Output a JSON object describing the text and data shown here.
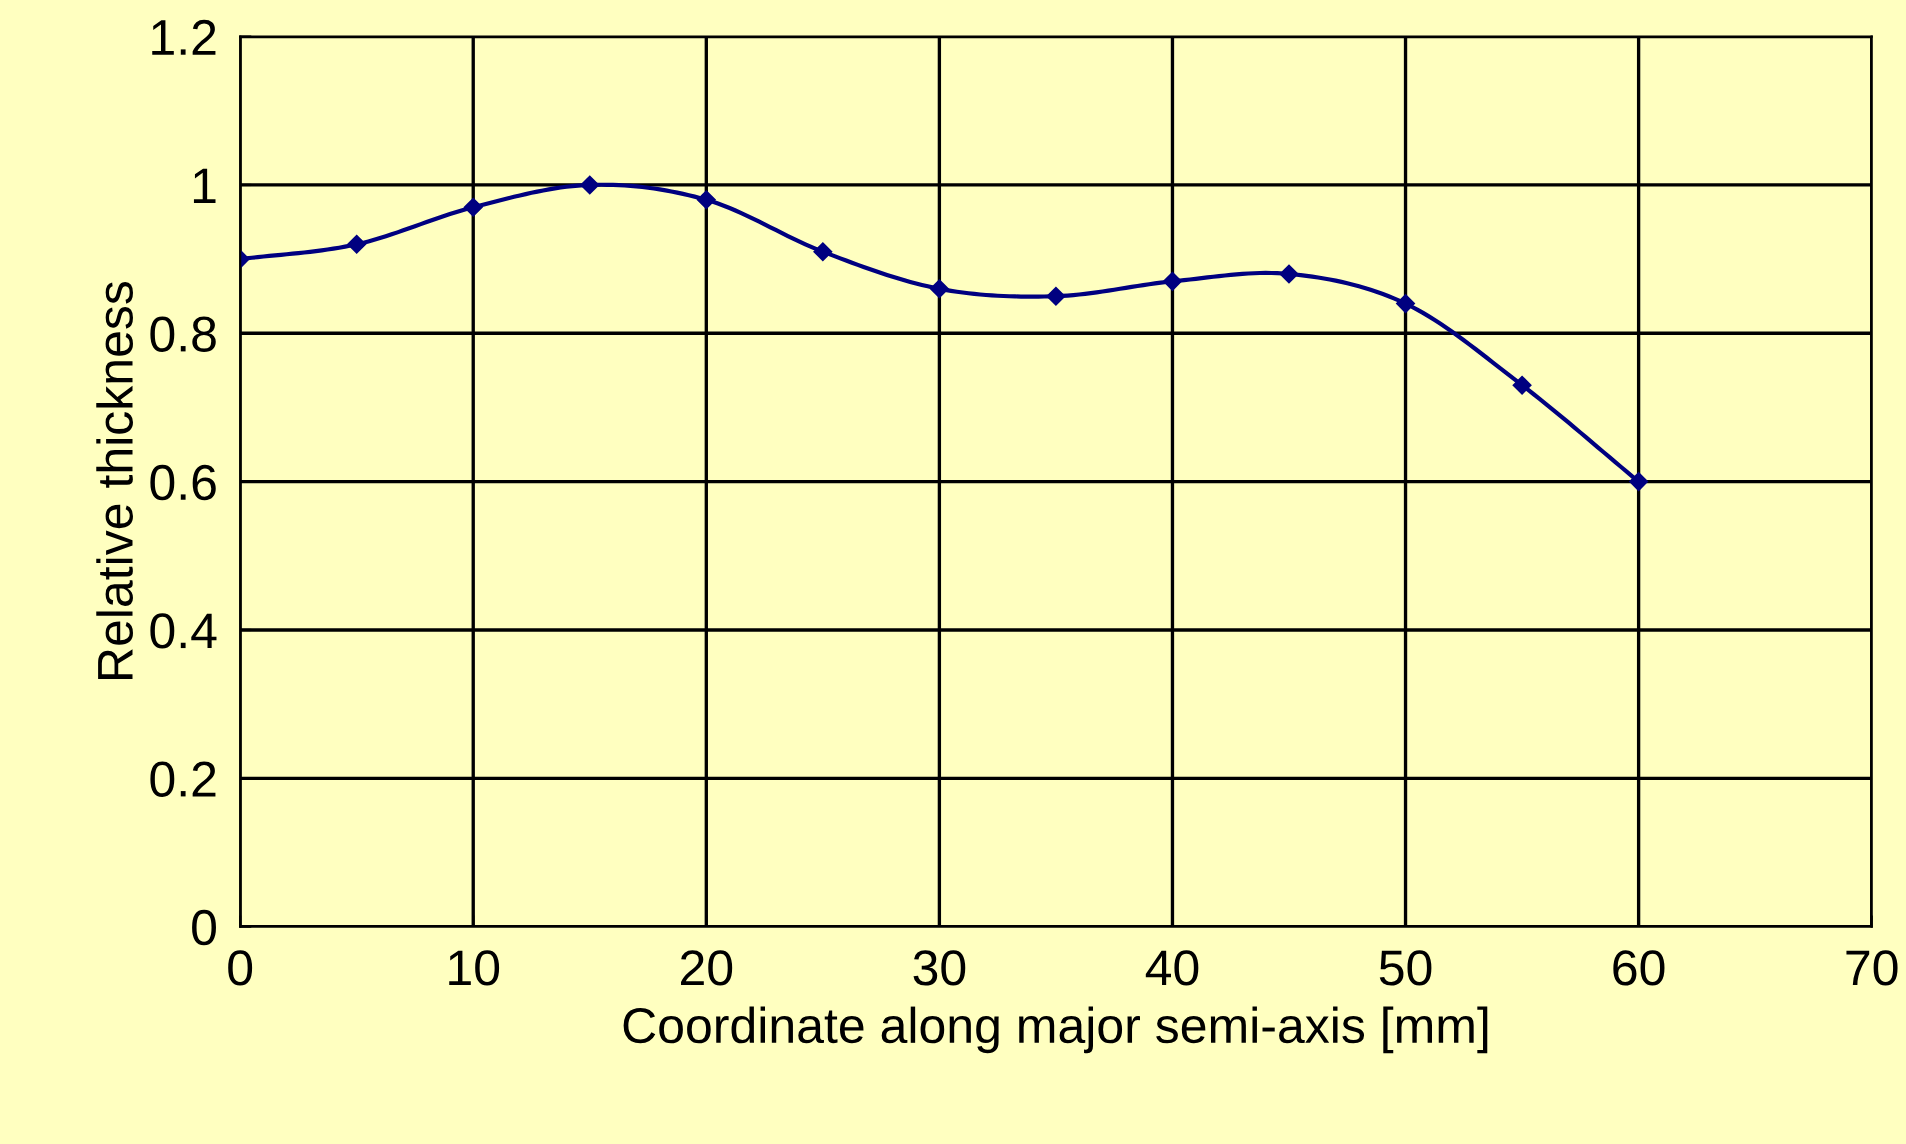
{
  "chart_data": {
    "type": "line",
    "xlabel": "Coordinate along major semi-axis [mm]",
    "ylabel": "Relative thickness",
    "x": [
      0,
      5,
      10,
      15,
      20,
      25,
      30,
      35,
      40,
      45,
      50,
      55,
      60
    ],
    "series": [
      {
        "color": "#000080",
        "values": [
          0.9,
          0.92,
          0.97,
          1.0,
          0.98,
          0.91,
          0.86,
          0.85,
          0.87,
          0.88,
          0.84,
          0.73,
          0.6
        ]
      }
    ],
    "xlim": [
      0,
      70
    ],
    "xticks": [
      0,
      10,
      20,
      30,
      40,
      50,
      60,
      70
    ],
    "ylim": [
      0,
      1.2
    ],
    "yticks": [
      0,
      0.2,
      0.4,
      0.6,
      0.8,
      1,
      1.2
    ],
    "grid": true,
    "marker": "diamond",
    "line_style": "solid"
  }
}
